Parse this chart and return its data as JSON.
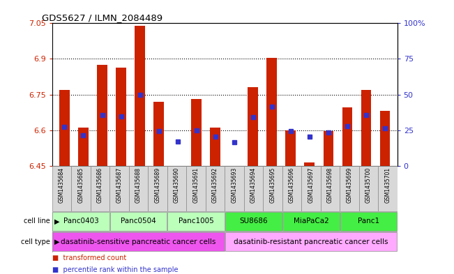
{
  "title": "GDS5627 / ILMN_2084489",
  "samples": [
    "GSM1435684",
    "GSM1435685",
    "GSM1435686",
    "GSM1435687",
    "GSM1435688",
    "GSM1435689",
    "GSM1435690",
    "GSM1435691",
    "GSM1435692",
    "GSM1435693",
    "GSM1435694",
    "GSM1435695",
    "GSM1435696",
    "GSM1435697",
    "GSM1435698",
    "GSM1435699",
    "GSM1435700",
    "GSM1435701"
  ],
  "bar_tops": [
    6.77,
    6.61,
    6.875,
    6.863,
    7.04,
    6.72,
    6.45,
    6.73,
    6.61,
    6.45,
    6.78,
    6.905,
    6.6,
    6.464,
    6.596,
    6.695,
    6.77,
    6.68
  ],
  "bar_bottom": 6.45,
  "blue_values": [
    6.615,
    6.578,
    6.665,
    6.658,
    6.75,
    6.595,
    6.552,
    6.6,
    6.572,
    6.55,
    6.655,
    6.7,
    6.596,
    6.572,
    6.591,
    6.617,
    6.663,
    6.608
  ],
  "bar_color": "#cc2200",
  "dot_color": "#3333cc",
  "dot_size": 4,
  "ylim": [
    6.45,
    7.05
  ],
  "yticks_left": [
    6.45,
    6.6,
    6.75,
    6.9,
    7.05
  ],
  "ytick_labels_left": [
    "6.45",
    "6.6",
    "6.75",
    "6.9",
    "7.05"
  ],
  "right_ylim": [
    0,
    100
  ],
  "right_yticks": [
    0,
    25,
    50,
    75,
    100
  ],
  "right_ytick_labels": [
    "0",
    "25",
    "50",
    "75",
    "100%"
  ],
  "hlines": [
    6.6,
    6.75,
    6.9
  ],
  "cell_lines": [
    {
      "label": "Panc0403",
      "start": 0,
      "end": 2,
      "color": "#bbffbb"
    },
    {
      "label": "Panc0504",
      "start": 3,
      "end": 5,
      "color": "#bbffbb"
    },
    {
      "label": "Panc1005",
      "start": 6,
      "end": 8,
      "color": "#bbffbb"
    },
    {
      "label": "SU8686",
      "start": 9,
      "end": 11,
      "color": "#44ee44"
    },
    {
      "label": "MiaPaCa2",
      "start": 12,
      "end": 14,
      "color": "#44ee44"
    },
    {
      "label": "Panc1",
      "start": 15,
      "end": 17,
      "color": "#44ee44"
    }
  ],
  "cell_types": [
    {
      "label": "dasatinib-sensitive pancreatic cancer cells",
      "start": 0,
      "end": 8,
      "color": "#ee55ee"
    },
    {
      "label": "dasatinib-resistant pancreatic cancer cells",
      "start": 9,
      "end": 17,
      "color": "#ffaaff"
    }
  ],
  "sample_bg": "#d8d8d8",
  "bar_width": 0.55,
  "bg_color": "#ffffff",
  "legend_items": [
    {
      "label": "transformed count",
      "color": "#cc2200"
    },
    {
      "label": "percentile rank within the sample",
      "color": "#3333cc"
    }
  ]
}
